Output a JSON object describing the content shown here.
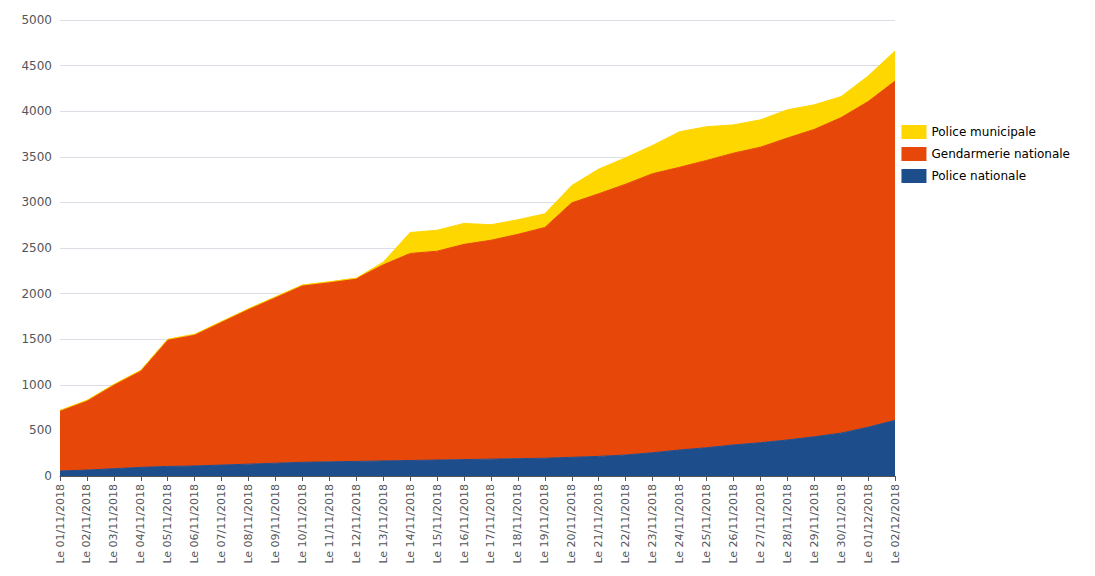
{
  "chart_data": {
    "type": "area",
    "stacked": true,
    "grid": true,
    "legend": "right",
    "categories": [
      "Le 01/11/2018",
      "Le 02/11/2018",
      "Le 03/11/2018",
      "Le 04/11/2018",
      "Le 05/11/2018",
      "Le 06/11/2018",
      "Le 07/11/2018",
      "Le 08/11/2018",
      "Le 09/11/2018",
      "Le 10/11/2018",
      "Le 11/11/2018",
      "Le 12/11/2018",
      "Le 13/11/2018",
      "Le 14/11/2018",
      "Le 15/11/2018",
      "Le 16/11/2018",
      "Le 17/11/2018",
      "Le 18/11/2018",
      "Le 19/11/2018",
      "Le 20/11/2018",
      "Le 21/11/2018",
      "Le 22/11/2018",
      "Le 23/11/2018",
      "Le 24/11/2018",
      "Le 25/11/2018",
      "Le 26/11/2018",
      "Le 27/11/2018",
      "Le 28/11/2018",
      "Le 29/11/2018",
      "Le 30/11/2018",
      "Le 01/12/2018",
      "Le 02/12/2018"
    ],
    "series": [
      {
        "name": "Police nationale",
        "color": "#1e4d8c",
        "values": [
          55,
          65,
          80,
          95,
          105,
          110,
          120,
          130,
          140,
          150,
          155,
          160,
          165,
          170,
          175,
          180,
          185,
          190,
          195,
          205,
          215,
          230,
          255,
          285,
          310,
          340,
          365,
          395,
          430,
          470,
          535,
          610
        ]
      },
      {
        "name": "Gendarmerie nationale",
        "color": "#e8470a",
        "values": [
          660,
          760,
          920,
          1060,
          1390,
          1440,
          1570,
          1700,
          1820,
          1940,
          1970,
          2005,
          2150,
          2270,
          2290,
          2360,
          2400,
          2460,
          2530,
          2790,
          2880,
          2970,
          3060,
          3100,
          3150,
          3200,
          3240,
          3310,
          3370,
          3460,
          3570,
          3720
        ]
      },
      {
        "name": "Police municipale",
        "color": "#ffd700",
        "values": [
          5,
          5,
          5,
          5,
          5,
          5,
          5,
          5,
          5,
          5,
          5,
          5,
          30,
          230,
          230,
          230,
          170,
          160,
          150,
          190,
          270,
          290,
          310,
          390,
          370,
          310,
          300,
          310,
          270,
          230,
          280,
          330
        ]
      }
    ],
    "ylim": [
      0,
      5000
    ],
    "yticks": [
      0,
      500,
      1000,
      1500,
      2000,
      2500,
      3000,
      3500,
      4000,
      4500,
      5000
    ]
  }
}
